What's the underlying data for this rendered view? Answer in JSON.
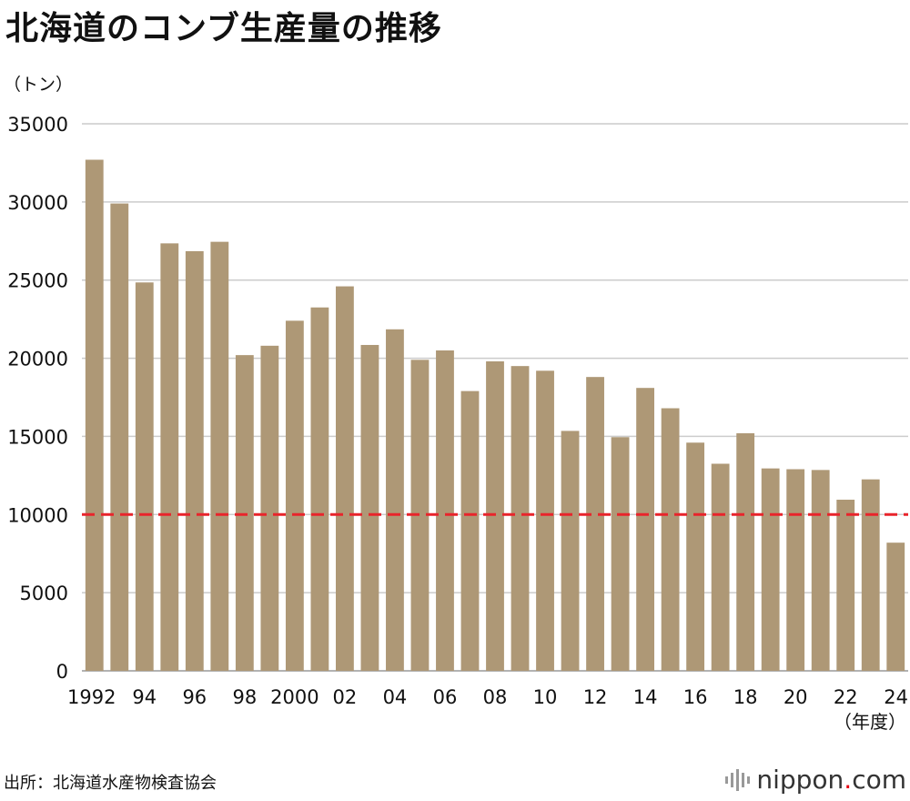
{
  "header": {
    "title": "北海道のコンブ生産量の推移",
    "unit": "（トン）"
  },
  "footer": {
    "source": "出所：北海道水産物検査協会",
    "logo_main": "nippon",
    "logo_dot": ".",
    "logo_tld": "com"
  },
  "colors": {
    "bar": "#ae9876",
    "grid": "#cccccc",
    "reference_line": "#e8242b"
  },
  "chart_data": {
    "type": "bar",
    "title": "北海道のコンブ生産量の推移",
    "ylabel": "（トン）",
    "xlabel": "（年度）",
    "ylim": [
      0,
      35000
    ],
    "yticks": [
      0,
      5000,
      10000,
      15000,
      20000,
      25000,
      30000,
      35000
    ],
    "categories": [
      "1992",
      "1993",
      "1994",
      "1995",
      "1996",
      "1997",
      "1998",
      "1999",
      "2000",
      "2001",
      "2002",
      "2003",
      "2004",
      "2005",
      "2006",
      "2007",
      "2008",
      "2009",
      "2010",
      "2011",
      "2012",
      "2013",
      "2014",
      "2015",
      "2016",
      "2017",
      "2018",
      "2019",
      "2020",
      "2021",
      "2022",
      "2023",
      "2024"
    ],
    "values": [
      32700,
      29900,
      24850,
      27350,
      26850,
      27450,
      20200,
      20800,
      22400,
      23250,
      24600,
      20850,
      21850,
      19900,
      20500,
      17900,
      19800,
      19500,
      19200,
      15350,
      18800,
      14950,
      18100,
      16800,
      14600,
      13250,
      15200,
      12950,
      12900,
      12850,
      10950,
      12250,
      8200
    ],
    "xtick_labels": [
      {
        "index": 0,
        "label": "1992"
      },
      {
        "index": 2,
        "label": "94"
      },
      {
        "index": 4,
        "label": "96"
      },
      {
        "index": 6,
        "label": "98"
      },
      {
        "index": 8,
        "label": "2000"
      },
      {
        "index": 10,
        "label": "02"
      },
      {
        "index": 12,
        "label": "04"
      },
      {
        "index": 14,
        "label": "06"
      },
      {
        "index": 16,
        "label": "08"
      },
      {
        "index": 18,
        "label": "10"
      },
      {
        "index": 20,
        "label": "12"
      },
      {
        "index": 22,
        "label": "14"
      },
      {
        "index": 24,
        "label": "16"
      },
      {
        "index": 26,
        "label": "18"
      },
      {
        "index": 28,
        "label": "20"
      },
      {
        "index": 30,
        "label": "22"
      },
      {
        "index": 32,
        "label": "24"
      }
    ],
    "reference_line": {
      "value": 10000,
      "style": "dashed"
    },
    "grid": true,
    "legend": "none"
  }
}
